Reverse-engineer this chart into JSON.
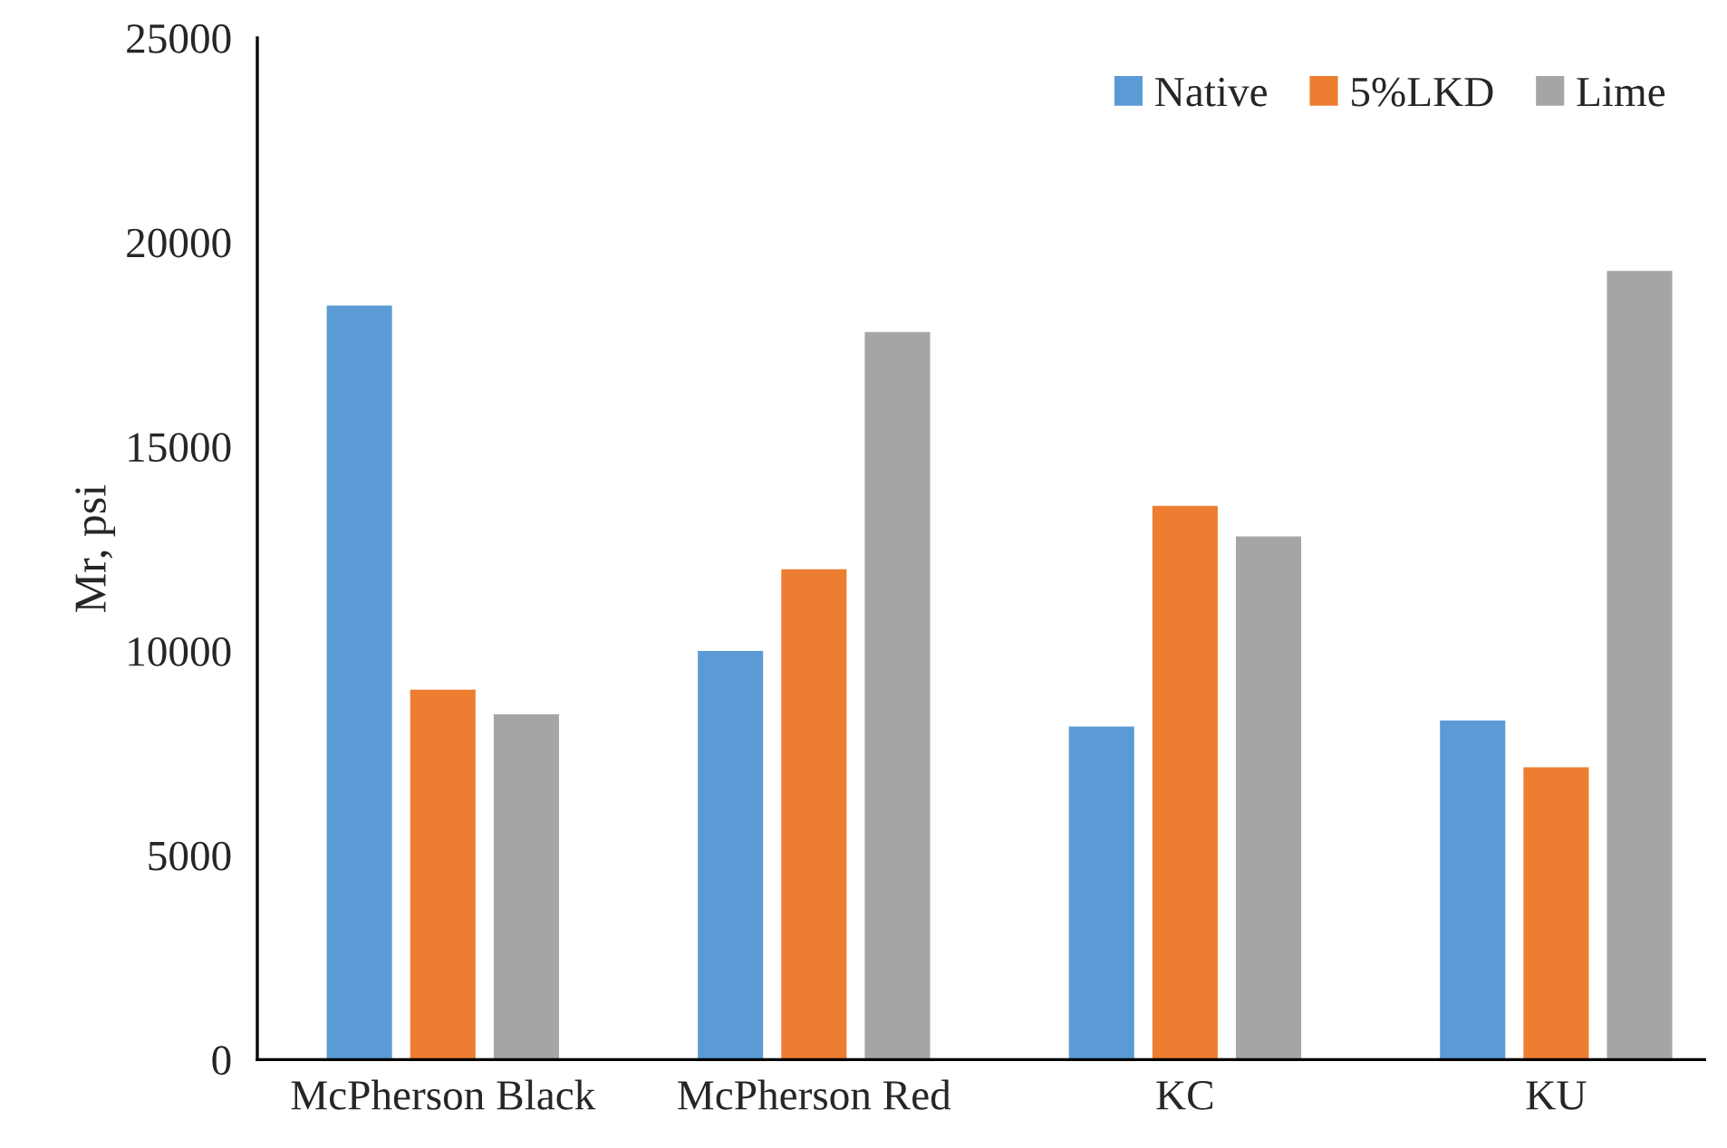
{
  "chart_data": {
    "type": "bar",
    "ylabel": "Mr, psi",
    "categories": [
      "McPherson Black",
      "McPherson Red",
      "KC",
      "KU"
    ],
    "series": [
      {
        "name": "Native",
        "color": "#5b9bd5",
        "values": [
          18450,
          10000,
          8150,
          8300
        ]
      },
      {
        "name": "5%LKD",
        "color": "#ed7d31",
        "values": [
          9050,
          12000,
          13550,
          7150
        ]
      },
      {
        "name": "Lime",
        "color": "#a5a5a5",
        "values": [
          8450,
          17800,
          12800,
          19300
        ]
      }
    ],
    "ylim": [
      0,
      25000
    ],
    "yticks": [
      0,
      5000,
      10000,
      15000,
      20000,
      25000
    ],
    "grid": false,
    "legend": "top right"
  }
}
